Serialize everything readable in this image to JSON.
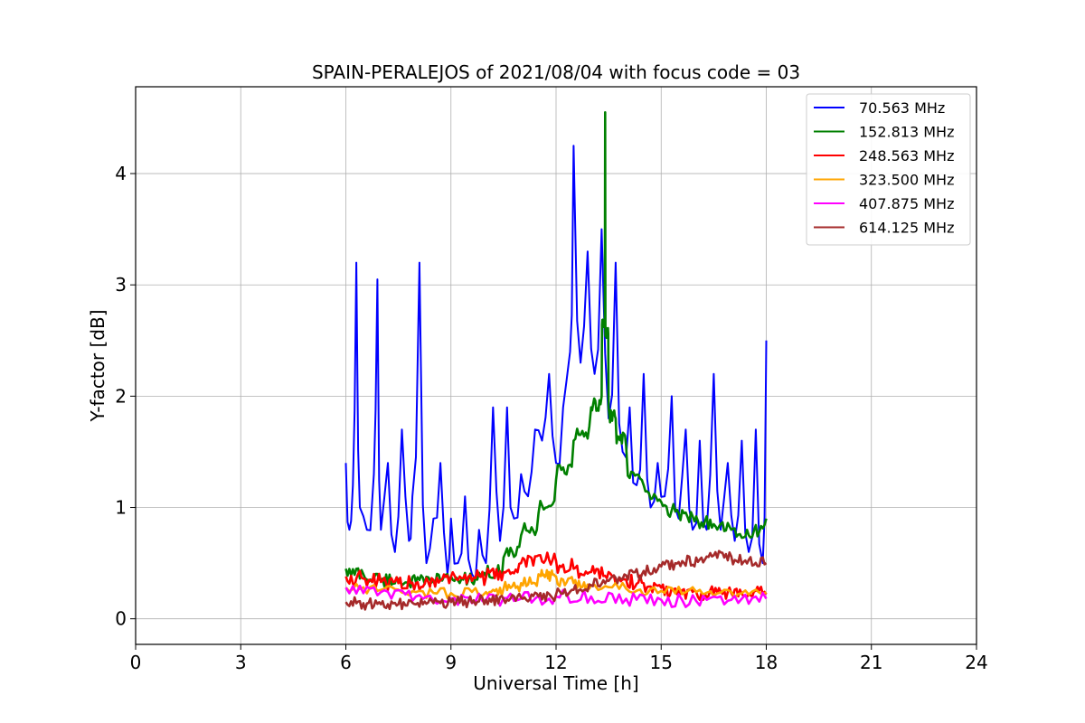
{
  "chart_data": {
    "type": "line",
    "title": "SPAIN-PERALEJOS of 2021/08/04 with focus code = 03",
    "xlabel": "Universal Time [h]",
    "ylabel": "Y-factor [dB]",
    "xlim": [
      0,
      24
    ],
    "ylim": [
      -0.23,
      4.78
    ],
    "xticks": [
      0,
      3,
      6,
      9,
      12,
      15,
      18,
      21,
      24
    ],
    "yticks": [
      0,
      1,
      2,
      3,
      4
    ],
    "grid": true,
    "legend_position": "top-right",
    "series": [
      {
        "name": " 70.563 MHz",
        "color": "#0000ff",
        "x": [
          6.0,
          6.1,
          6.2,
          6.3,
          6.4,
          6.6,
          6.8,
          6.9,
          7.0,
          7.2,
          7.4,
          7.6,
          7.8,
          7.9,
          8.1,
          8.3,
          8.5,
          8.7,
          8.9,
          9.0,
          9.2,
          9.4,
          9.6,
          9.8,
          10.0,
          10.2,
          10.4,
          10.6,
          10.8,
          11.0,
          11.2,
          11.4,
          11.6,
          11.8,
          12.0,
          12.2,
          12.4,
          12.5,
          12.7,
          12.9,
          13.1,
          13.3,
          13.5,
          13.7,
          13.9,
          14.1,
          14.3,
          14.5,
          14.7,
          14.9,
          15.1,
          15.3,
          15.5,
          15.7,
          15.9,
          16.1,
          16.3,
          16.5,
          16.7,
          16.9,
          17.1,
          17.3,
          17.5,
          17.7,
          17.9,
          18.0
        ],
        "y": [
          1.4,
          0.8,
          1.2,
          3.2,
          1.0,
          0.8,
          1.3,
          3.05,
          0.8,
          1.4,
          0.6,
          1.7,
          0.7,
          1.1,
          3.2,
          0.5,
          0.9,
          1.4,
          0.4,
          0.9,
          0.5,
          1.1,
          0.4,
          0.8,
          0.5,
          1.9,
          0.7,
          1.9,
          0.9,
          1.3,
          1.1,
          1.7,
          1.6,
          2.2,
          1.4,
          1.9,
          2.4,
          4.25,
          2.3,
          3.3,
          2.2,
          3.5,
          1.8,
          3.2,
          1.5,
          1.9,
          1.2,
          2.2,
          1.0,
          1.4,
          1.1,
          2.0,
          0.9,
          1.7,
          0.8,
          1.6,
          0.8,
          2.2,
          0.8,
          1.4,
          0.7,
          1.6,
          0.6,
          1.7,
          0.5,
          2.5
        ]
      },
      {
        "name": "152.813 MHz",
        "color": "#008000",
        "x": [
          6.0,
          6.5,
          7.0,
          7.5,
          8.0,
          8.5,
          9.0,
          9.5,
          10.0,
          10.5,
          11.0,
          11.5,
          12.0,
          12.5,
          13.0,
          13.3,
          13.4,
          13.5,
          13.7,
          14.0,
          14.5,
          15.0,
          15.5,
          16.0,
          16.5,
          17.0,
          17.5,
          18.0
        ],
        "y": [
          0.45,
          0.4,
          0.35,
          0.35,
          0.33,
          0.35,
          0.38,
          0.35,
          0.38,
          0.55,
          0.75,
          0.95,
          1.25,
          1.6,
          1.9,
          2.0,
          4.55,
          1.9,
          1.8,
          1.55,
          1.2,
          1.05,
          0.95,
          0.92,
          0.85,
          0.8,
          0.75,
          0.9
        ]
      },
      {
        "name": "248.563 MHz",
        "color": "#ff0000",
        "x": [
          6.0,
          6.5,
          7.0,
          7.5,
          8.0,
          8.5,
          9.0,
          9.5,
          10.0,
          10.5,
          11.0,
          11.5,
          12.0,
          12.5,
          13.0,
          13.5,
          14.0,
          14.5,
          15.0,
          15.5,
          16.0,
          16.5,
          17.0,
          17.5,
          18.0
        ],
        "y": [
          0.38,
          0.36,
          0.33,
          0.32,
          0.32,
          0.35,
          0.38,
          0.38,
          0.37,
          0.42,
          0.5,
          0.57,
          0.52,
          0.45,
          0.42,
          0.42,
          0.35,
          0.32,
          0.28,
          0.25,
          0.24,
          0.23,
          0.23,
          0.22,
          0.22
        ]
      },
      {
        "name": "323.500 MHz",
        "color": "#ffa500",
        "x": [
          6.0,
          7.0,
          8.0,
          9.0,
          10.0,
          10.5,
          11.0,
          11.5,
          11.8,
          12.0,
          12.5,
          13.0,
          14.0,
          15.0,
          16.0,
          17.0,
          18.0
        ],
        "y": [
          0.28,
          0.26,
          0.24,
          0.23,
          0.24,
          0.27,
          0.32,
          0.4,
          0.42,
          0.38,
          0.32,
          0.3,
          0.27,
          0.25,
          0.24,
          0.24,
          0.24
        ]
      },
      {
        "name": "407.875 MHz",
        "color": "#ff00ff",
        "x": [
          6.0,
          7.0,
          8.0,
          9.0,
          10.0,
          11.0,
          12.0,
          13.0,
          14.0,
          15.0,
          16.0,
          17.0,
          18.0
        ],
        "y": [
          0.28,
          0.24,
          0.2,
          0.18,
          0.17,
          0.18,
          0.2,
          0.2,
          0.18,
          0.17,
          0.16,
          0.17,
          0.18
        ]
      },
      {
        "name": "614.125 MHz",
        "color": "#a52a2a",
        "x": [
          6.0,
          6.5,
          7.0,
          7.5,
          8.0,
          8.5,
          9.0,
          9.5,
          10.0,
          10.5,
          11.0,
          11.5,
          12.0,
          12.5,
          13.0,
          13.5,
          14.0,
          14.5,
          15.0,
          15.5,
          16.0,
          16.5,
          17.0,
          17.5,
          18.0
        ],
        "y": [
          0.15,
          0.14,
          0.13,
          0.13,
          0.13,
          0.14,
          0.15,
          0.16,
          0.17,
          0.18,
          0.19,
          0.2,
          0.22,
          0.26,
          0.3,
          0.34,
          0.39,
          0.43,
          0.47,
          0.51,
          0.55,
          0.57,
          0.56,
          0.53,
          0.5
        ]
      }
    ]
  }
}
